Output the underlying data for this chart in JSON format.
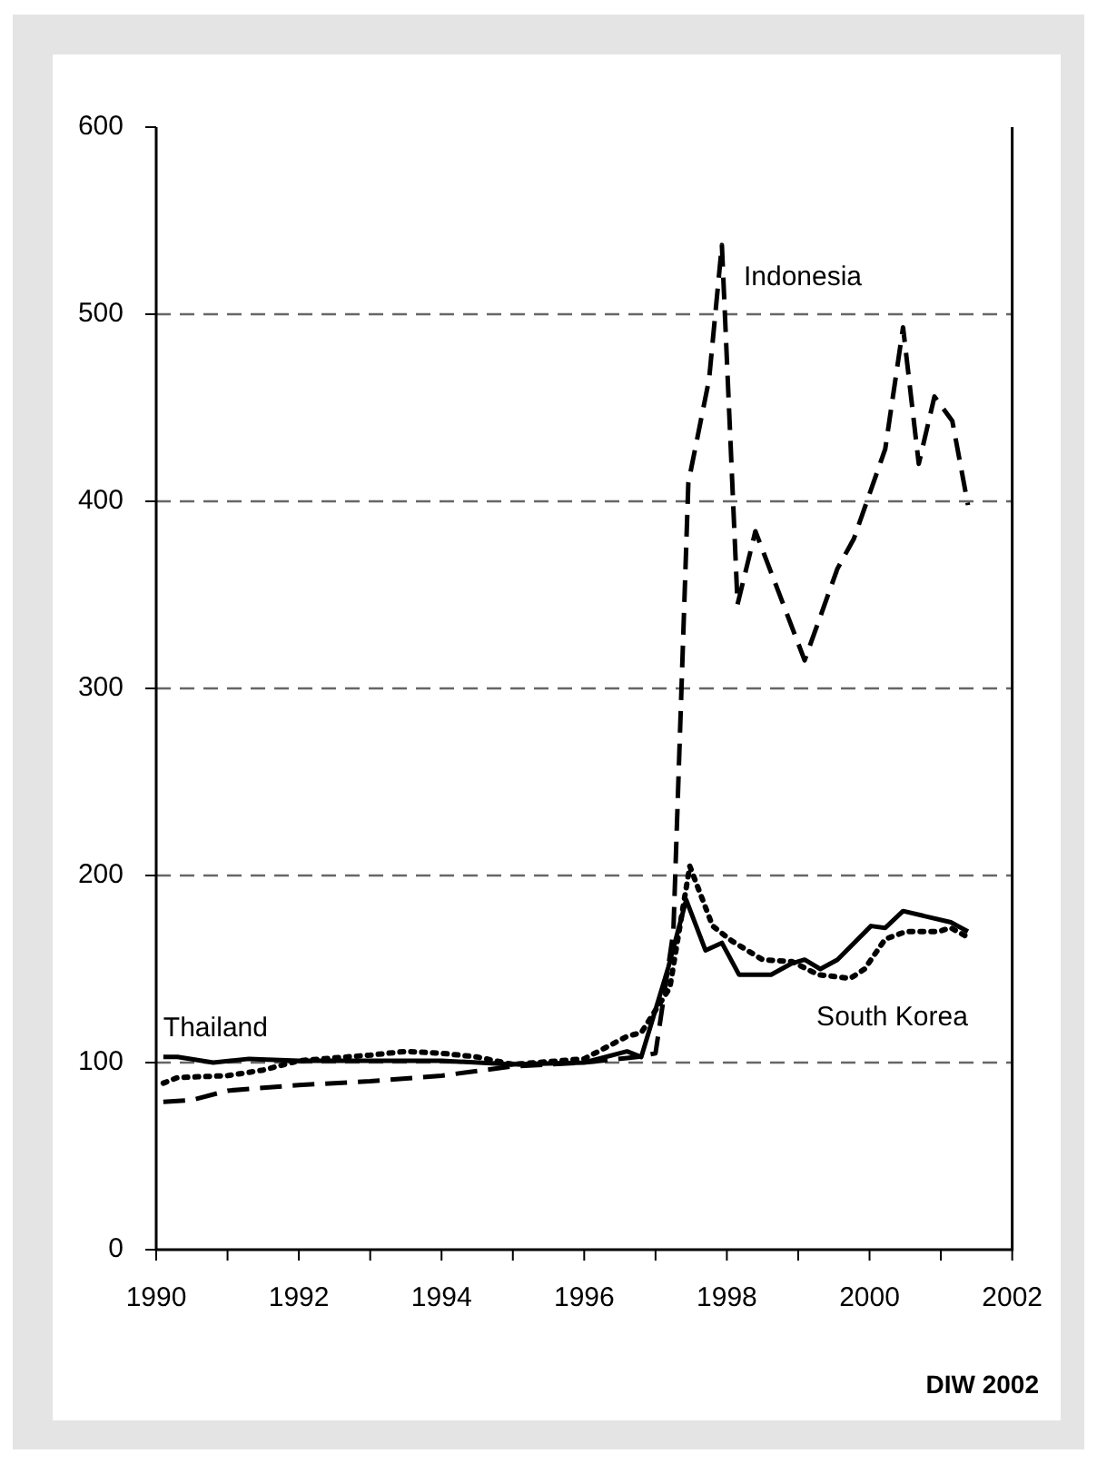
{
  "chart_data": {
    "type": "line",
    "xlim": [
      1990,
      2002
    ],
    "xticks": [
      1990,
      {
        "value": 1991,
        "label": null
      },
      1992,
      {
        "value": 1993,
        "label": null
      },
      1994,
      {
        "value": 1995,
        "label": null
      },
      1996,
      {
        "value": 1997,
        "label": null
      },
      1998,
      {
        "value": 1999,
        "label": null
      },
      2000,
      {
        "value": 2001,
        "label": null
      },
      2002
    ],
    "ylim": [
      0,
      600
    ],
    "yticks": [
      0,
      100,
      200,
      300,
      400,
      500,
      600
    ],
    "grid": "y",
    "legend": false,
    "marker": "none",
    "annotations": [
      "DIW 2002"
    ],
    "series": [
      {
        "name": "Thailand",
        "color": "#000000",
        "line_style": "solid",
        "x": [
          1990.1,
          1990.3,
          1990.8,
          1991.3,
          1992,
          1993,
          1994,
          1995,
          1996,
          1996.6,
          1996.8,
          1997.18,
          1997.43,
          1997.7,
          1997.93,
          1998.17,
          1998.62,
          1998.91,
          1999.09,
          1999.31,
          1999.55,
          2000.02,
          2000.22,
          2000.47,
          2001.14,
          2001.38
        ],
        "values": [
          103,
          103,
          100,
          102,
          101,
          101,
          101,
          99,
          100,
          106,
          103,
          151,
          187,
          160,
          164,
          147,
          147,
          153,
          155,
          150,
          155,
          173,
          172,
          181,
          175,
          170
        ]
      },
      {
        "name": "South Korea",
        "color": "#000000",
        "line_style": "dotted",
        "x": [
          1990.1,
          1990.3,
          1991,
          1991.5,
          1992,
          1993,
          1993.5,
          1994,
          1994.5,
          1995,
          1996,
          1996.3,
          1996.6,
          1996.8,
          1997.2,
          1997.48,
          1997.8,
          1998.07,
          1998.5,
          1998.91,
          1999.28,
          1999.73,
          1999.93,
          2000.22,
          2000.51,
          2000.96,
          2001.14,
          2001.38
        ],
        "values": [
          89,
          92,
          93,
          96,
          101,
          104,
          106,
          105,
          103,
          99,
          102,
          108,
          114,
          116,
          140,
          205,
          173,
          165,
          155,
          154,
          147,
          145,
          150,
          166,
          170,
          170,
          172,
          167
        ]
      },
      {
        "name": "Indonesia",
        "color": "#000000",
        "line_style": "dashed",
        "x": [
          1990.1,
          1990.5,
          1991,
          1992,
          1993,
          1994,
          1995,
          1996,
          1996.75,
          1997.0,
          1997.25,
          1997.46,
          1997.75,
          1997.93,
          1998.15,
          1998.4,
          1999.09,
          1999.55,
          1999.78,
          2000.22,
          2000.47,
          2000.69,
          2000.91,
          2001.16,
          2001.38
        ],
        "values": [
          79,
          80,
          85,
          88,
          90,
          93,
          98,
          100,
          103,
          105,
          170,
          410,
          465,
          537,
          345,
          384,
          315,
          364,
          380,
          428,
          493,
          420,
          456,
          443,
          398
        ]
      }
    ]
  }
}
